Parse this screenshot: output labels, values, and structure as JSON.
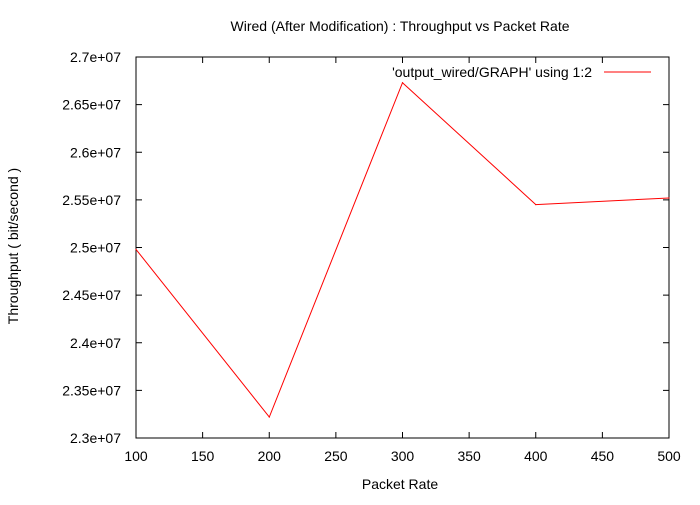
{
  "chart_data": {
    "type": "line",
    "title": "Wired (After Modification) : Throughput vs Packet Rate",
    "xlabel": "Packet Rate",
    "ylabel": "Throughput ( bit/second )",
    "xlim": [
      100,
      500
    ],
    "ylim": [
      23000000,
      27000000
    ],
    "xticks": [
      100,
      150,
      200,
      250,
      300,
      350,
      400,
      450,
      500
    ],
    "xtick_labels": [
      "100",
      "150",
      "200",
      "250",
      "300",
      "350",
      "400",
      "450",
      "500"
    ],
    "yticks": [
      23000000,
      23500000,
      24000000,
      24500000,
      25000000,
      25500000,
      26000000,
      26500000,
      27000000
    ],
    "ytick_labels": [
      "2.3e+07",
      "2.35e+07",
      "2.4e+07",
      "2.45e+07",
      "2.5e+07",
      "2.55e+07",
      "2.6e+07",
      "2.65e+07",
      "2.7e+07"
    ],
    "grid": false,
    "legend_position": "top-right",
    "series": [
      {
        "name": "'output_wired/GRAPH' using 1:2",
        "color": "#ff0000",
        "x": [
          100,
          200,
          300,
          400,
          500
        ],
        "y": [
          24980000,
          23220000,
          26730000,
          25450000,
          25520000
        ]
      }
    ]
  }
}
